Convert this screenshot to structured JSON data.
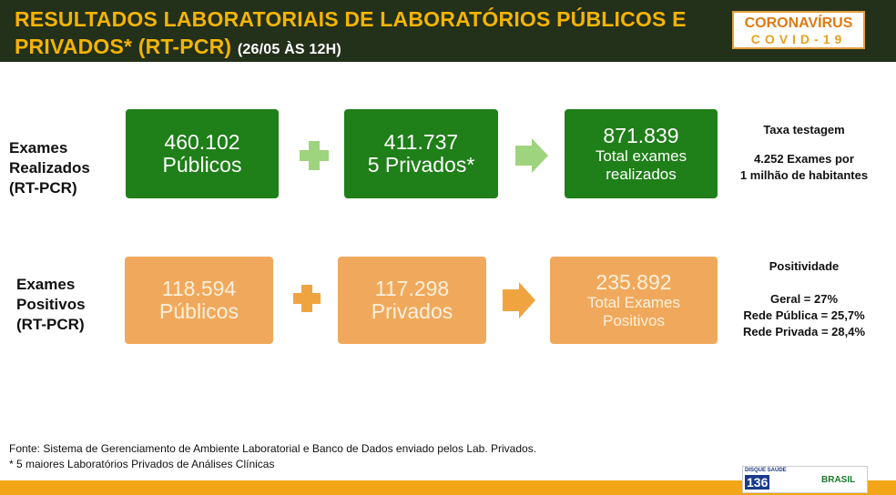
{
  "header": {
    "title_line1": "RESULTADOS LABORATORIAIS DE LABORATÓRIOS PÚBLICOS E",
    "title_line2": "PRIVADOS* (RT-PCR)",
    "date": "(26/05 ÀS 12H)",
    "badge_top": "CORONAVÍRUS",
    "badge_bottom": "COVID-19"
  },
  "rows": [
    {
      "label": [
        "Exames",
        "Realizados",
        "(RT-PCR)"
      ],
      "boxes": [
        {
          "number": "460.102",
          "label": [
            "Públicos"
          ]
        },
        {
          "number": "411.737",
          "label": [
            "5 Privados*"
          ]
        },
        {
          "number": "871.839",
          "label": [
            "Total exames",
            "realizados"
          ]
        }
      ],
      "note": {
        "title": "Taxa testagem",
        "lines": [
          "4.252 Exames por",
          "1 milhão de habitantes"
        ]
      }
    },
    {
      "label": [
        "Exames",
        "Positivos",
        "(RT-PCR)"
      ],
      "boxes": [
        {
          "number": "118.594",
          "label": [
            "Públicos"
          ]
        },
        {
          "number": "117.298",
          "label": [
            "Privados"
          ]
        },
        {
          "number": "235.892",
          "label": [
            "Total Exames",
            "Positivos"
          ]
        }
      ],
      "note": {
        "title": "Positividade",
        "lines": [
          "Geral = 27%",
          "Rede Pública = 25,7%",
          "Rede Privada = 28,4%"
        ]
      }
    }
  ],
  "footer": {
    "source": "Fonte: Sistema de Gerenciamento de Ambiente Laboratorial e Banco de Dados enviado pelos Lab. Privados.",
    "footnote": "* 5 maiores Laboratórios Privados de Análises Clínicas",
    "hotline_label": "DISQUE SAÚDE",
    "hotline_number": "136",
    "brand": "BRASIL"
  }
}
